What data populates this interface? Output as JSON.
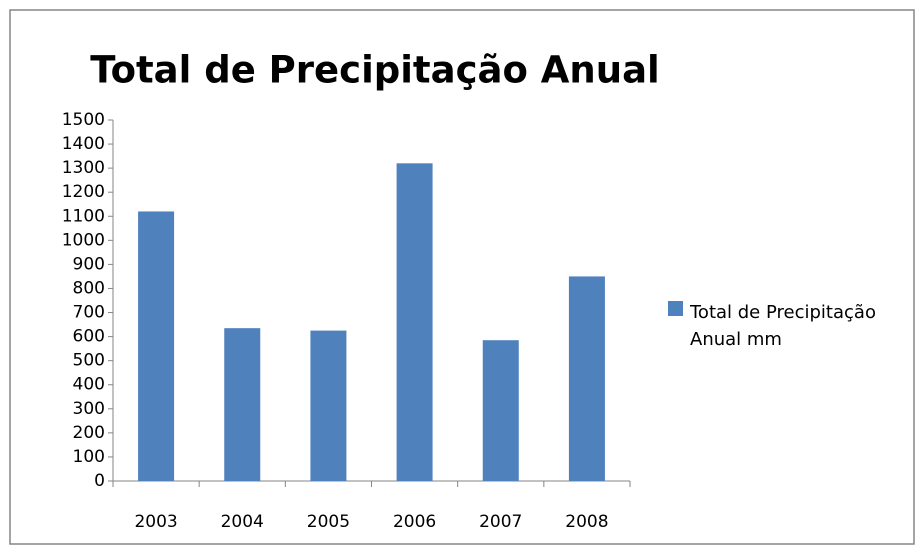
{
  "chart_data": {
    "type": "bar",
    "title": "Total de Precipitação Anual",
    "categories": [
      "2003",
      "2004",
      "2005",
      "2006",
      "2007",
      "2008"
    ],
    "series": [
      {
        "name": "Total de Precipitação Anual mm",
        "color": "#4f81bd",
        "values": [
          1120,
          635,
          625,
          1320,
          585,
          850
        ]
      }
    ],
    "ylim": [
      0,
      1500
    ],
    "yticks": [
      0,
      100,
      200,
      300,
      400,
      500,
      600,
      700,
      800,
      900,
      1000,
      1100,
      1200,
      1300,
      1400,
      1500
    ],
    "grid": false,
    "legend": "right"
  }
}
